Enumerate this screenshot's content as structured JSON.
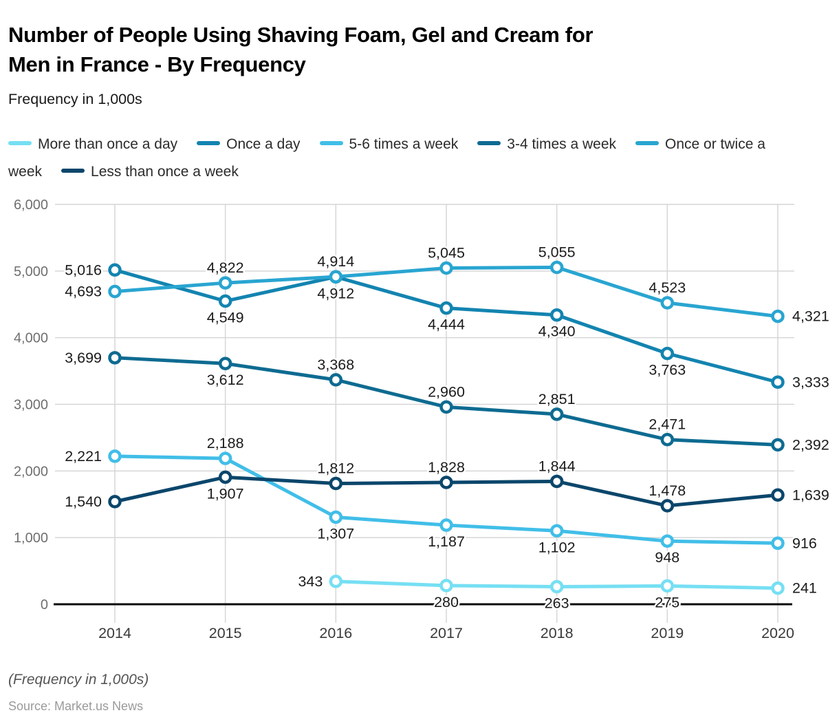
{
  "header": {
    "title_lines": [
      "Number of People Using Shaving Foam, Gel and Cream for",
      "Men in France - By Frequency"
    ],
    "subtitle": "Frequency in 1,000s"
  },
  "legend": {
    "rows": [
      {
        "items": [
          {
            "swatch": "#76DFF3",
            "text": "More than once a day"
          },
          {
            "swatch": "#1384B0",
            "text": "Once a day"
          },
          {
            "swatch": "#41BEE8",
            "text": "5-6 times a week"
          },
          {
            "swatch": "#0E6B91",
            "text": "3-4 times a week"
          },
          {
            "swatch": "#29A5D1",
            "text": "Once or twice a"
          }
        ]
      },
      {
        "items": [
          {
            "swatch": null,
            "text": "week"
          },
          {
            "swatch": "#0B466B",
            "text": "Less than once a week"
          }
        ]
      }
    ]
  },
  "chart_data": {
    "type": "line",
    "title": "Number of People Using Shaving Foam, Gel and Cream for Men in France - By Frequency",
    "xlabel": "",
    "ylabel": "Frequency in 1,000s",
    "x_tick_labels": [
      "2014",
      "2015",
      "2016",
      "2017",
      "2018",
      "2019",
      "2020"
    ],
    "y_tick_labels": [
      "0",
      "1,000",
      "2,000",
      "3,000",
      "4,000",
      "5,000",
      "6,000"
    ],
    "ylim": [
      0,
      6000
    ],
    "ytick_step": 1000,
    "grid": true,
    "legend_position": "top",
    "categories": [
      2014,
      2015,
      2016,
      2017,
      2018,
      2019,
      2020
    ],
    "series": [
      {
        "name": "More than once a day",
        "color": "#76DFF3",
        "values": [
          null,
          null,
          343,
          280,
          263,
          275,
          241
        ],
        "label_positions": [
          null,
          null,
          "left",
          "below",
          "below",
          "below",
          "right"
        ]
      },
      {
        "name": "Once a day",
        "color": "#1384B0",
        "values": [
          5016,
          4549,
          4912,
          4444,
          4340,
          3763,
          3333
        ],
        "label_positions": [
          "left",
          "below",
          "below",
          "below",
          "below",
          "below",
          "right"
        ]
      },
      {
        "name": "5-6 times a week",
        "color": "#41BEE8",
        "values": [
          2221,
          2188,
          1307,
          1187,
          1102,
          948,
          916
        ],
        "label_positions": [
          "left",
          "above",
          "below",
          "below",
          "below",
          "below",
          "right"
        ]
      },
      {
        "name": "3-4 times a week",
        "color": "#0E6B91",
        "values": [
          3699,
          3612,
          3368,
          2960,
          2851,
          2471,
          2392
        ],
        "label_positions": [
          "left",
          "below",
          "above",
          "above",
          "above",
          "above",
          "right"
        ]
      },
      {
        "name": "Once or twice a week",
        "color": "#29A5D1",
        "values": [
          4693,
          4822,
          4914,
          5045,
          5055,
          4523,
          4321
        ],
        "label_positions": [
          "left",
          "above",
          "above",
          "above",
          "above",
          "above",
          "right"
        ]
      },
      {
        "name": "Less than once a week",
        "color": "#0B466B",
        "values": [
          1540,
          1907,
          1812,
          1828,
          1844,
          1478,
          1639
        ],
        "label_positions": [
          "left",
          "below",
          "above",
          "above",
          "above",
          "above",
          "right"
        ]
      }
    ]
  },
  "footer": {
    "note": "(Frequency in 1,000s)",
    "source": "Source: Market.us News"
  },
  "colors": {
    "gridline": "#d6d6d6",
    "axis": "#0b0b0b",
    "y_tick_text": "#6f6f6f",
    "x_tick_text": "#3a3a3a",
    "data_label": "#1b1b1b"
  }
}
